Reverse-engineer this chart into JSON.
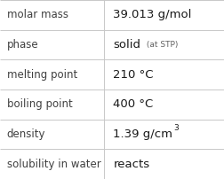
{
  "rows": [
    {
      "label": "molar mass",
      "value": "39.013 g/mol",
      "type": "simple"
    },
    {
      "label": "phase",
      "value_main": "solid",
      "value_sub": " (at STP)",
      "type": "sub"
    },
    {
      "label": "melting point",
      "value": "210 °C",
      "type": "simple"
    },
    {
      "label": "boiling point",
      "value": "400 °C",
      "type": "simple"
    },
    {
      "label": "density",
      "value_main": "1.39 g/cm",
      "value_sup": "3",
      "type": "sup"
    },
    {
      "label": "solubility in water",
      "value": "reacts",
      "type": "simple"
    }
  ],
  "bg_color": "#ffffff",
  "border_color": "#c8c8c8",
  "label_color": "#404040",
  "value_color": "#1a1a1a",
  "sub_color": "#606060",
  "label_fontsize": 8.5,
  "value_fontsize": 9.5,
  "sub_fontsize": 6.5,
  "sup_fontsize": 6.5,
  "col_split": 0.465,
  "fig_width": 2.52,
  "fig_height": 2.02,
  "dpi": 100
}
